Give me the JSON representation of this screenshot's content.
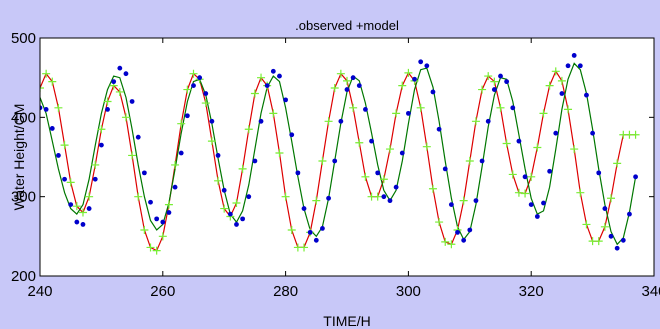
{
  "chart_data": {
    "type": "line",
    "title": ".observed +model",
    "xlabel": "TIME/H",
    "ylabel": "Water Height/CM",
    "xlim": [
      240,
      340
    ],
    "ylim": [
      200,
      500
    ],
    "xticks": [
      240,
      260,
      280,
      300,
      320,
      340
    ],
    "yticks": [
      200,
      300,
      400,
      500
    ],
    "grid": false,
    "legend": "none",
    "colors": {
      "figure_background": "#c8c8f8",
      "axes_background": "#ffffff",
      "observed": "#0000cc",
      "model": "#dd0000",
      "model_marker": "#77ee33",
      "fit": "#007700"
    },
    "series": [
      {
        "role": "observed",
        "style": "points",
        "x": [
          240,
          241,
          242,
          243,
          244,
          245,
          246,
          247,
          248,
          249,
          250,
          251,
          252,
          253,
          254,
          255,
          256,
          257,
          258,
          259,
          260,
          261,
          262,
          263,
          264,
          265,
          266,
          267,
          268,
          269,
          270,
          271,
          272,
          273,
          274,
          275,
          276,
          277,
          278,
          279,
          280,
          281,
          282,
          283,
          284,
          285,
          286,
          287,
          288,
          289,
          290,
          291,
          292,
          293,
          294,
          295,
          296,
          297,
          298,
          299,
          300,
          301,
          302,
          303,
          304,
          305,
          306,
          307,
          308,
          309,
          310,
          311,
          312,
          313,
          314,
          315,
          316,
          317,
          318,
          319,
          320,
          321,
          322,
          323,
          324,
          325,
          326,
          327,
          328,
          329,
          330,
          331,
          332,
          333,
          334,
          335,
          336,
          337
        ],
        "y": [
          412,
          410,
          386,
          352,
          322,
          290,
          268,
          265,
          285,
          322,
          365,
          410,
          445,
          462,
          455,
          420,
          375,
          330,
          293,
          272,
          268,
          280,
          312,
          355,
          402,
          440,
          450,
          430,
          395,
          352,
          308,
          278,
          265,
          272,
          300,
          345,
          395,
          440,
          458,
          452,
          422,
          378,
          330,
          285,
          255,
          245,
          260,
          298,
          345,
          395,
          435,
          450,
          440,
          410,
          370,
          330,
          300,
          295,
          312,
          355,
          405,
          448,
          470,
          465,
          432,
          385,
          335,
          290,
          255,
          245,
          258,
          295,
          345,
          395,
          435,
          452,
          445,
          412,
          370,
          325,
          290,
          275,
          292,
          332,
          380,
          430,
          465,
          478,
          465,
          428,
          380,
          330,
          285,
          250,
          235,
          245,
          278,
          325
        ]
      },
      {
        "role": "model",
        "style": "line+plus",
        "x": [
          240,
          241,
          242,
          243,
          244,
          245,
          246,
          247,
          248,
          249,
          250,
          251,
          252,
          253,
          254,
          255,
          256,
          257,
          258,
          259,
          260,
          261,
          262,
          263,
          264,
          265,
          266,
          267,
          268,
          269,
          270,
          271,
          272,
          273,
          274,
          275,
          276,
          277,
          278,
          279,
          280,
          281,
          282,
          283,
          284,
          285,
          286,
          287,
          288,
          289,
          290,
          291,
          292,
          293,
          294,
          295,
          296,
          297,
          298,
          299,
          300,
          301,
          302,
          303,
          304,
          305,
          306,
          307,
          308,
          309,
          310,
          311,
          312,
          313,
          314,
          315,
          316,
          317,
          318,
          319,
          320,
          321,
          322,
          323,
          324,
          325,
          326,
          327,
          328,
          329,
          330,
          331,
          332,
          333,
          334,
          335,
          336,
          337
        ],
        "y": [
          437,
          455,
          445,
          412,
          365,
          318,
          288,
          280,
          300,
          340,
          385,
          420,
          440,
          432,
          400,
          352,
          300,
          258,
          236,
          232,
          250,
          290,
          340,
          392,
          435,
          455,
          448,
          418,
          370,
          320,
          285,
          275,
          292,
          335,
          385,
          430,
          450,
          440,
          405,
          355,
          300,
          258,
          236,
          236,
          255,
          295,
          345,
          395,
          437,
          455,
          446,
          412,
          368,
          325,
          300,
          300,
          322,
          360,
          405,
          440,
          456,
          446,
          412,
          363,
          310,
          268,
          243,
          240,
          258,
          295,
          345,
          395,
          435,
          452,
          445,
          412,
          367,
          328,
          305,
          304,
          325,
          362,
          405,
          440,
          458,
          446,
          410,
          360,
          305,
          265,
          244,
          244,
          262,
          298,
          342,
          378,
          378,
          378
        ]
      },
      {
        "role": "fit",
        "style": "line",
        "x": [
          240,
          241,
          242,
          243,
          244,
          245,
          246,
          247,
          248,
          249,
          250,
          251,
          252,
          253,
          254,
          255,
          256,
          257,
          258,
          259,
          260,
          261,
          262,
          263,
          264,
          265,
          266,
          267,
          268,
          269,
          270,
          271,
          272,
          273,
          274,
          275,
          276,
          277,
          278,
          279,
          280,
          281,
          282,
          283,
          284,
          285,
          286,
          287,
          288,
          289,
          290,
          291,
          292,
          293,
          294,
          295,
          296,
          297,
          298,
          299,
          300,
          301,
          302,
          303,
          304,
          305,
          306,
          307,
          308,
          309,
          310,
          311,
          312,
          313,
          314,
          315,
          316,
          317,
          318,
          319,
          320,
          321,
          322,
          323,
          324,
          325,
          326,
          327,
          328,
          329,
          330,
          331,
          332,
          333,
          334,
          335,
          336,
          337
        ],
        "y": [
          425,
          405,
          370,
          335,
          305,
          285,
          278,
          290,
          322,
          365,
          405,
          435,
          452,
          450,
          425,
          385,
          340,
          300,
          270,
          258,
          265,
          292,
          335,
          380,
          420,
          445,
          448,
          428,
          392,
          348,
          308,
          278,
          268,
          282,
          315,
          360,
          405,
          438,
          452,
          445,
          412,
          370,
          325,
          285,
          258,
          250,
          262,
          298,
          345,
          393,
          432,
          452,
          446,
          418,
          380,
          340,
          308,
          295,
          308,
          345,
          392,
          435,
          460,
          462,
          438,
          395,
          345,
          298,
          262,
          246,
          256,
          290,
          338,
          388,
          428,
          450,
          448,
          420,
          378,
          335,
          298,
          278,
          282,
          312,
          360,
          410,
          448,
          468,
          460,
          430,
          385,
          335,
          290,
          256,
          240,
          248,
          280,
          325
        ]
      }
    ]
  }
}
